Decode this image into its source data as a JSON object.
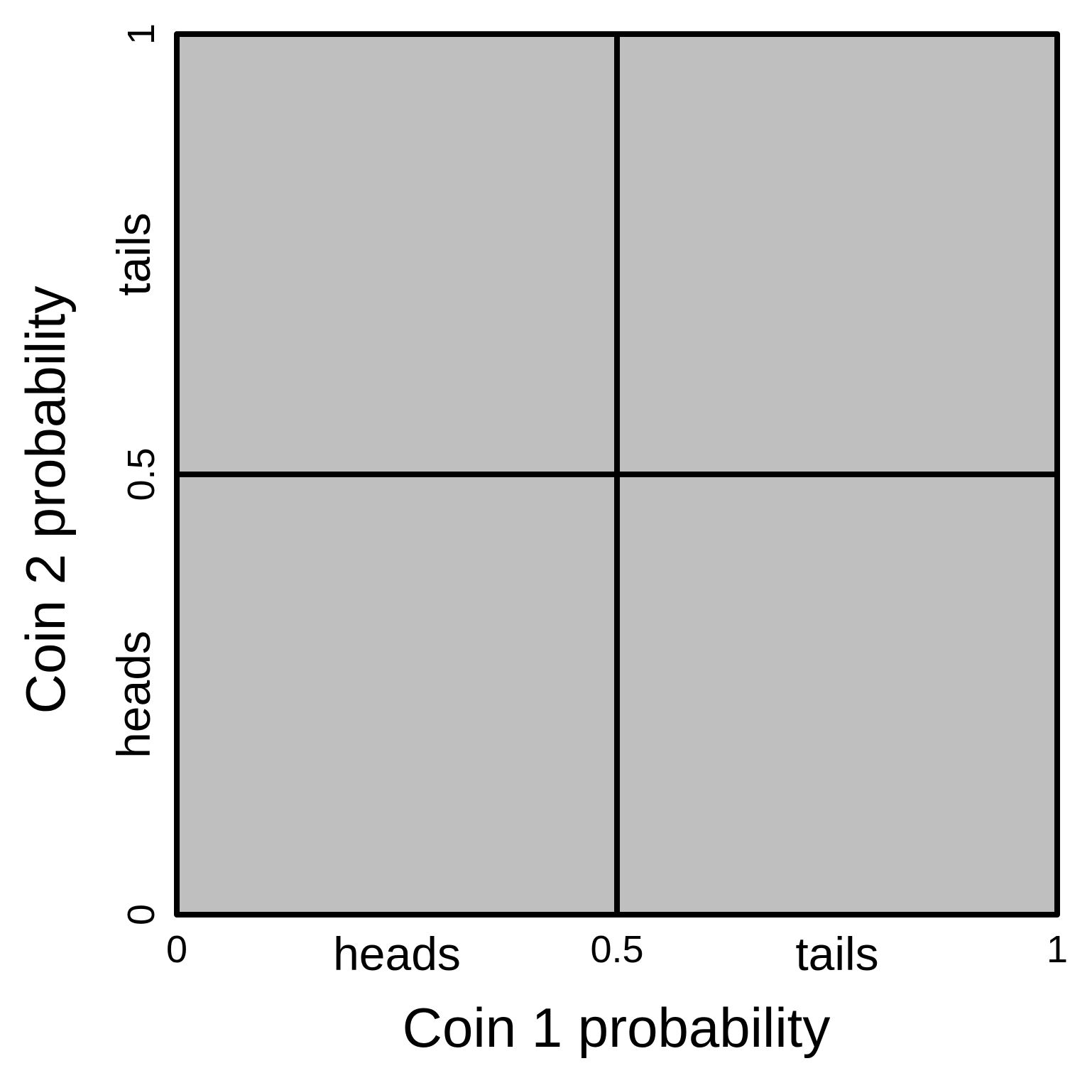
{
  "chart_data": {
    "type": "heatmap",
    "title": "",
    "xlabel": "Coin 1 probability",
    "ylabel": "Coin 2 probability",
    "xlim": [
      0,
      1
    ],
    "ylim": [
      0,
      1
    ],
    "x_ticks": [
      {
        "value": 0,
        "label": "0"
      },
      {
        "value": 0.5,
        "label": "0.5"
      },
      {
        "value": 1,
        "label": "1"
      }
    ],
    "y_ticks": [
      {
        "value": 0,
        "label": "0"
      },
      {
        "value": 0.5,
        "label": "0.5"
      },
      {
        "value": 1,
        "label": "1"
      }
    ],
    "x_categories": [
      {
        "label": "heads",
        "from": 0,
        "to": 0.5
      },
      {
        "label": "tails",
        "from": 0.5,
        "to": 1
      }
    ],
    "y_categories": [
      {
        "label": "heads",
        "from": 0,
        "to": 0.5
      },
      {
        "label": "tails",
        "from": 0.5,
        "to": 1
      }
    ],
    "cells": [
      {
        "x": "heads",
        "y": "heads",
        "x_range": [
          0,
          0.5
        ],
        "y_range": [
          0,
          0.5
        ]
      },
      {
        "x": "tails",
        "y": "heads",
        "x_range": [
          0.5,
          1
        ],
        "y_range": [
          0,
          0.5
        ]
      },
      {
        "x": "heads",
        "y": "tails",
        "x_range": [
          0,
          0.5
        ],
        "y_range": [
          0.5,
          1
        ]
      },
      {
        "x": "tails",
        "y": "tails",
        "x_range": [
          0.5,
          1
        ],
        "y_range": [
          0.5,
          1
        ]
      }
    ],
    "cell_color": "#bfbfbf",
    "line_color": "#000000",
    "grid": false,
    "legend": "none"
  }
}
